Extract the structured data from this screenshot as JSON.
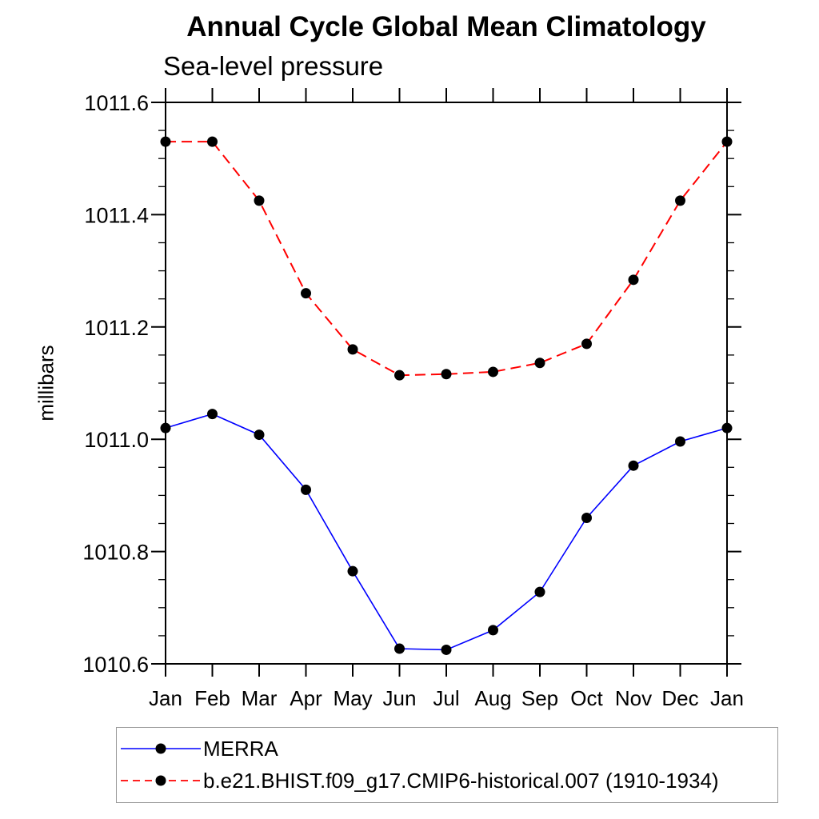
{
  "title": "Annual Cycle Global Mean Climatology",
  "subtitle": "Sea-level pressure",
  "chart_data": {
    "type": "line",
    "title": "Annual Cycle Global Mean Climatology",
    "subtitle": "Sea-level pressure",
    "xlabel": "",
    "ylabel": "millibars",
    "x_categories": [
      "Jan",
      "Feb",
      "Mar",
      "Apr",
      "May",
      "Jun",
      "Jul",
      "Aug",
      "Sep",
      "Oct",
      "Nov",
      "Dec",
      "Jan"
    ],
    "ylim": [
      1010.6,
      1011.6
    ],
    "ytick_major_labels": [
      "1010.6",
      "1010.8",
      "1011.0",
      "1011.2",
      "1011.4",
      "1011.6"
    ],
    "ytick_major_step": 0.2,
    "ytick_minor_step": 0.05,
    "grid": "off",
    "legend_position": "bottom-left-box",
    "axis_color": "#000000",
    "marker_color": "#000000",
    "series": [
      {
        "name": "MERRA",
        "color": "#0000ff",
        "line_style": "solid",
        "marker": "filled-circle",
        "values": [
          1011.02,
          1011.045,
          1011.008,
          1010.91,
          1010.765,
          1010.627,
          1010.625,
          1010.66,
          1010.728,
          1010.86,
          1010.953,
          1010.996,
          1011.02
        ]
      },
      {
        "name": "b.e21.BHIST.f09_g17.CMIP6-historical.007 (1910-1934)",
        "color": "#ff0000",
        "line_style": "dashed",
        "marker": "filled-circle",
        "values": [
          1011.53,
          1011.53,
          1011.425,
          1011.26,
          1011.16,
          1011.114,
          1011.116,
          1011.12,
          1011.136,
          1011.17,
          1011.284,
          1011.425,
          1011.53
        ]
      }
    ]
  }
}
